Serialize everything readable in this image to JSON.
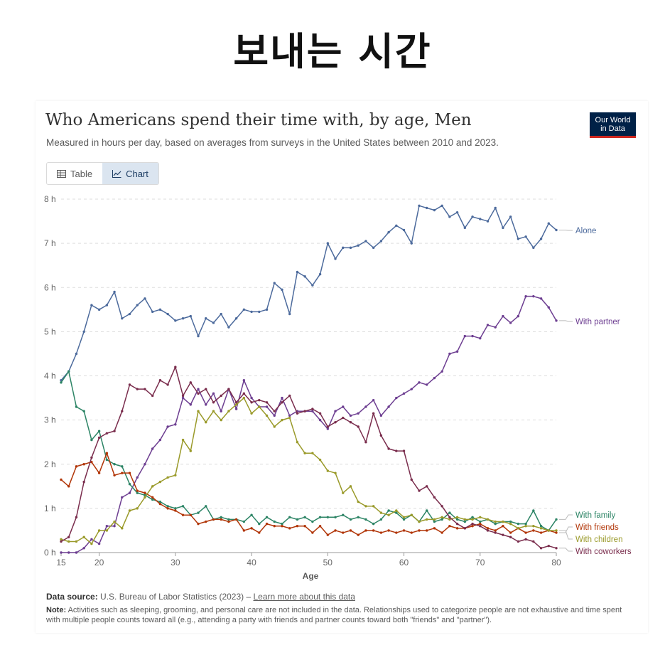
{
  "headline": "보내는 시간",
  "title": "Who Americans spend their time with, by age, Men",
  "subtitle": "Measured in hours per day, based on averages from surveys in the United States between 2010 and 2023.",
  "logo": {
    "line1": "Our World",
    "line2": "in Data"
  },
  "tabs": {
    "table": "Table",
    "chart": "Chart"
  },
  "footer": {
    "source_label": "Data source:",
    "source_text": "U.S. Bureau of Labor Statistics (2023) –",
    "source_link": "Learn more about this data",
    "note_label": "Note:",
    "note_text": "Activities such as sleeping, grooming, and personal care are not included in the data. Relationships used to categorize people are not exhaustive and time spent with multiple people counts toward all (e.g., attending a party with friends and partner counts toward both \"friends\" and \"partner\")."
  },
  "chart_data": {
    "type": "line",
    "title": "Who Americans spend their time with, by age, Men",
    "xlabel": "Age",
    "ylabel": "",
    "xlim": [
      15,
      80
    ],
    "ylim": [
      0,
      8
    ],
    "xticks": [
      15,
      20,
      30,
      40,
      50,
      60,
      70,
      80
    ],
    "yticks": [
      0,
      1,
      2,
      3,
      4,
      5,
      6,
      7,
      8
    ],
    "y_unit": " h",
    "grid": "horizontal dashed",
    "x": [
      15,
      16,
      17,
      18,
      19,
      20,
      21,
      22,
      23,
      24,
      25,
      26,
      27,
      28,
      29,
      30,
      31,
      32,
      33,
      34,
      35,
      36,
      37,
      38,
      39,
      40,
      41,
      42,
      43,
      44,
      45,
      46,
      47,
      48,
      49,
      50,
      51,
      52,
      53,
      54,
      55,
      56,
      57,
      58,
      59,
      60,
      61,
      62,
      63,
      64,
      65,
      66,
      67,
      68,
      69,
      70,
      71,
      72,
      73,
      74,
      75,
      76,
      77,
      78,
      79,
      80
    ],
    "series": [
      {
        "name": "Alone",
        "color": "#4c6a9c",
        "values": [
          3.9,
          4.1,
          4.5,
          5.0,
          5.6,
          5.5,
          5.6,
          5.9,
          5.3,
          5.4,
          5.6,
          5.75,
          5.45,
          5.5,
          5.4,
          5.25,
          5.3,
          5.35,
          4.9,
          5.3,
          5.2,
          5.4,
          5.1,
          5.3,
          5.5,
          5.45,
          5.45,
          5.5,
          6.1,
          5.95,
          5.4,
          6.35,
          6.25,
          6.05,
          6.3,
          7.0,
          6.65,
          6.9,
          6.9,
          6.95,
          7.05,
          6.9,
          7.05,
          7.25,
          7.4,
          7.3,
          7.0,
          7.85,
          7.8,
          7.75,
          7.85,
          7.6,
          7.7,
          7.35,
          7.6,
          7.55,
          7.5,
          7.8,
          7.35,
          7.6,
          7.1,
          7.15,
          6.9,
          7.1,
          7.45,
          7.3
        ]
      },
      {
        "name": "With partner",
        "color": "#6d3e91",
        "values": [
          0.0,
          0.0,
          0.0,
          0.1,
          0.3,
          0.2,
          0.6,
          0.6,
          1.25,
          1.35,
          1.7,
          2.0,
          2.35,
          2.55,
          2.85,
          2.9,
          3.5,
          3.35,
          3.7,
          3.35,
          3.6,
          3.2,
          3.7,
          3.25,
          3.9,
          3.5,
          3.3,
          3.3,
          3.1,
          3.5,
          3.1,
          3.2,
          3.2,
          3.2,
          3.0,
          2.8,
          3.2,
          3.3,
          3.1,
          3.15,
          3.3,
          3.45,
          3.1,
          3.3,
          3.5,
          3.6,
          3.7,
          3.85,
          3.8,
          3.95,
          4.1,
          4.5,
          4.55,
          4.9,
          4.9,
          4.85,
          5.15,
          5.1,
          5.35,
          5.2,
          5.35,
          5.8,
          5.8,
          5.75,
          5.55,
          5.25
        ]
      },
      {
        "name": "With family",
        "color": "#2c8465",
        "values": [
          3.85,
          4.1,
          3.3,
          3.2,
          2.55,
          2.75,
          2.1,
          2.0,
          1.95,
          1.55,
          1.35,
          1.3,
          1.2,
          1.15,
          1.05,
          1.0,
          1.05,
          0.85,
          0.9,
          1.05,
          0.75,
          0.8,
          0.75,
          0.75,
          0.7,
          0.85,
          0.65,
          0.8,
          0.7,
          0.65,
          0.8,
          0.75,
          0.8,
          0.7,
          0.8,
          0.8,
          0.8,
          0.85,
          0.75,
          0.8,
          0.75,
          0.65,
          0.75,
          0.95,
          0.9,
          0.75,
          0.85,
          0.7,
          0.95,
          0.7,
          0.75,
          0.9,
          0.75,
          0.7,
          0.8,
          0.7,
          0.75,
          0.65,
          0.7,
          0.7,
          0.65,
          0.65,
          0.95,
          0.6,
          0.5,
          0.75
        ]
      },
      {
        "name": "With friends",
        "color": "#b13507",
        "values": [
          1.65,
          1.5,
          1.95,
          2.0,
          2.05,
          1.8,
          2.25,
          1.75,
          1.8,
          1.8,
          1.4,
          1.35,
          1.25,
          1.1,
          1.0,
          0.95,
          0.85,
          0.85,
          0.65,
          0.7,
          0.75,
          0.75,
          0.7,
          0.75,
          0.5,
          0.55,
          0.45,
          0.65,
          0.6,
          0.6,
          0.55,
          0.6,
          0.6,
          0.45,
          0.6,
          0.4,
          0.5,
          0.45,
          0.5,
          0.4,
          0.5,
          0.5,
          0.45,
          0.5,
          0.45,
          0.5,
          0.45,
          0.5,
          0.5,
          0.55,
          0.45,
          0.6,
          0.55,
          0.55,
          0.6,
          0.65,
          0.55,
          0.5,
          0.6,
          0.45,
          0.55,
          0.45,
          0.5,
          0.45,
          0.5,
          0.45
        ]
      },
      {
        "name": "With children",
        "color": "#9a9a2a",
        "values": [
          0.3,
          0.25,
          0.25,
          0.35,
          0.2,
          0.5,
          0.5,
          0.7,
          0.55,
          0.95,
          1.0,
          1.25,
          1.5,
          1.6,
          1.7,
          1.75,
          2.55,
          2.3,
          3.2,
          2.95,
          3.2,
          3.0,
          3.2,
          3.35,
          3.5,
          3.15,
          3.3,
          3.1,
          2.85,
          3.0,
          3.05,
          2.5,
          2.25,
          2.25,
          2.1,
          1.85,
          1.8,
          1.35,
          1.5,
          1.15,
          1.05,
          1.05,
          0.9,
          0.85,
          0.95,
          0.8,
          0.85,
          0.7,
          0.75,
          0.75,
          0.8,
          0.75,
          0.8,
          0.75,
          0.75,
          0.8,
          0.75,
          0.7,
          0.7,
          0.65,
          0.55,
          0.6,
          0.6,
          0.55,
          0.5,
          0.5
        ]
      },
      {
        "name": "With coworkers",
        "color": "#7a2d4d",
        "values": [
          0.25,
          0.35,
          0.8,
          1.6,
          2.15,
          2.6,
          2.7,
          2.75,
          3.2,
          3.8,
          3.7,
          3.7,
          3.55,
          3.9,
          3.8,
          4.2,
          3.55,
          3.85,
          3.6,
          3.7,
          3.4,
          3.55,
          3.7,
          3.4,
          3.6,
          3.4,
          3.45,
          3.4,
          3.2,
          3.4,
          3.55,
          3.15,
          3.2,
          3.25,
          3.15,
          2.85,
          2.95,
          3.05,
          2.95,
          2.85,
          2.5,
          3.15,
          2.65,
          2.35,
          2.3,
          2.3,
          1.65,
          1.4,
          1.5,
          1.25,
          1.05,
          0.8,
          0.65,
          0.55,
          0.65,
          0.6,
          0.5,
          0.45,
          0.4,
          0.35,
          0.25,
          0.3,
          0.25,
          0.1,
          0.15,
          0.1
        ]
      }
    ]
  }
}
